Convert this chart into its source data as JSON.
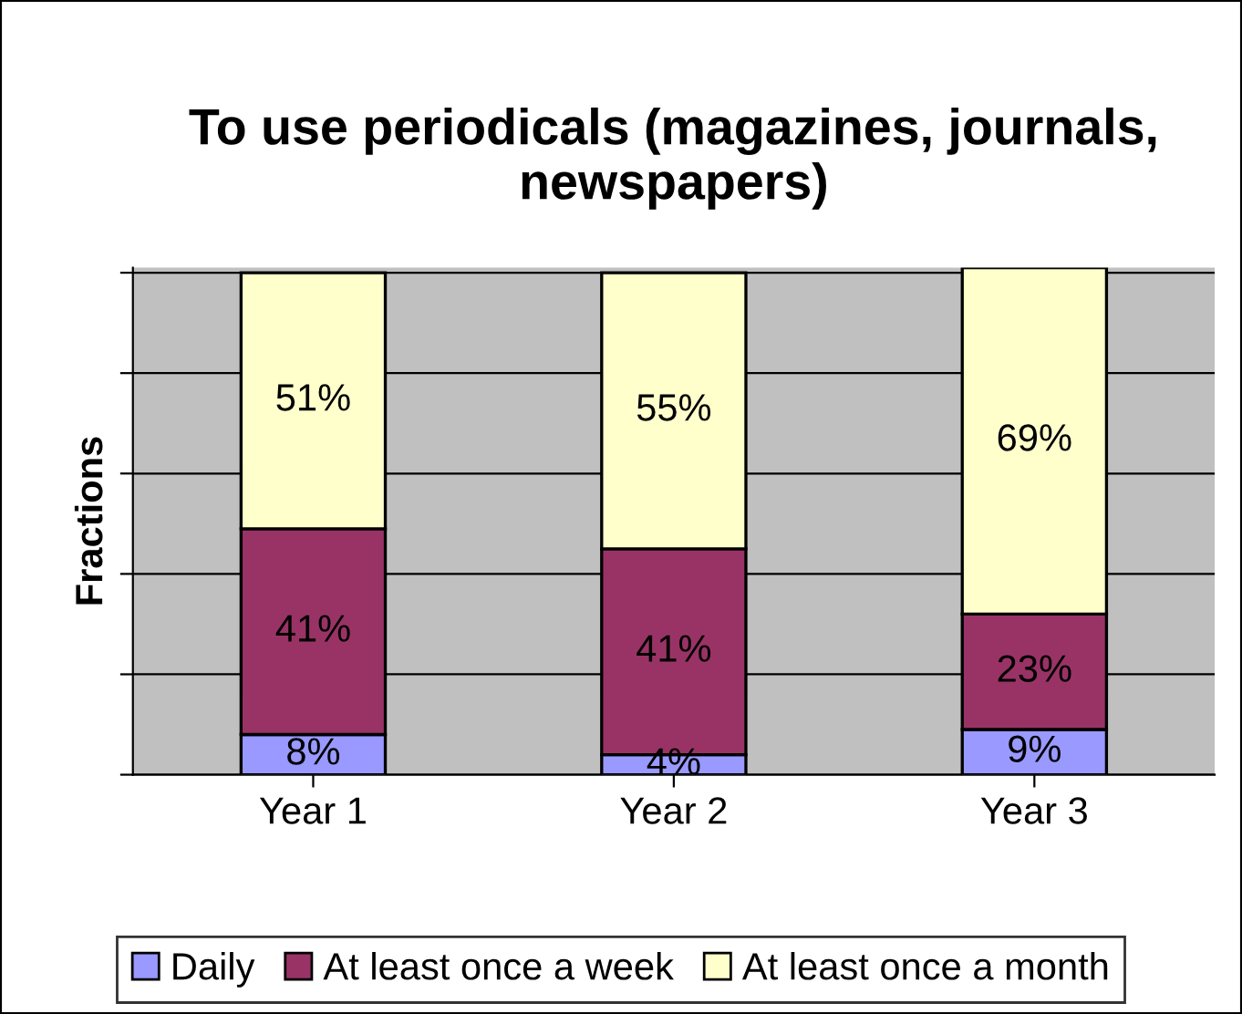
{
  "chart_data": {
    "type": "bar",
    "stacked": true,
    "title": "To use periodicals (magazines, journals, newspapers)",
    "ylabel": "Fractions",
    "categories": [
      "Year 1",
      "Year 2",
      "Year 3"
    ],
    "series": [
      {
        "name": "Daily",
        "color": "#9999ff",
        "values": [
          8,
          4,
          9
        ],
        "value_labels": [
          "8%",
          "4%",
          "9%"
        ]
      },
      {
        "name": "At least once a week",
        "color": "#993366",
        "values": [
          41,
          41,
          23
        ],
        "value_labels": [
          "41%",
          "41%",
          "23%"
        ]
      },
      {
        "name": "At least once a month",
        "color": "#ffffcc",
        "values": [
          51,
          55,
          69
        ],
        "value_labels": [
          "51%",
          "55%",
          "69%"
        ]
      }
    ],
    "ylim": [
      0,
      101
    ],
    "yticks": [
      {
        "value": 0,
        "label": null
      },
      {
        "value": 20,
        "label": null
      },
      {
        "value": 40,
        "label": null
      },
      {
        "value": 60,
        "label": null
      },
      {
        "value": 80,
        "label": null
      },
      {
        "value": 100,
        "label": null
      }
    ],
    "tick_labels": "x",
    "grid": "y",
    "legend": "bottom"
  }
}
